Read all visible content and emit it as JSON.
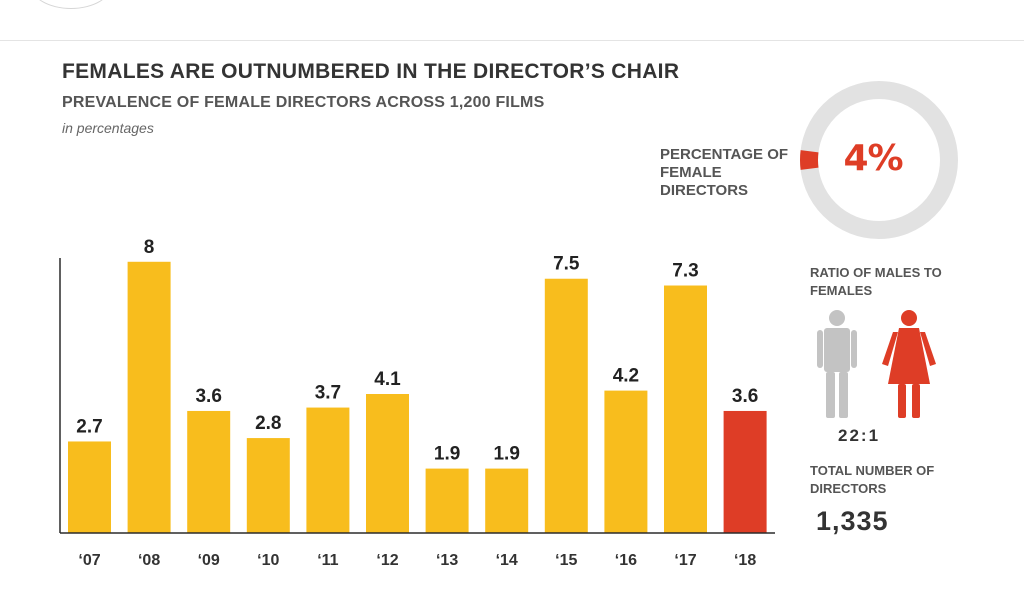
{
  "header": {
    "title": "FEMALES ARE OUTNUMBERED IN THE DIRECTOR’S CHAIR",
    "subtitle": "PREVALENCE OF FEMALE DIRECTORS ACROSS 1,200 FILMS",
    "unit_note": "in percentages"
  },
  "colors": {
    "bar": "#f8bd1d",
    "highlight": "#de3d26",
    "male_icon": "#c3c3c3",
    "donut_ring": "#e2e2e2"
  },
  "chart_data": {
    "type": "bar",
    "categories": [
      "‘07",
      "‘08",
      "‘09",
      "‘10",
      "‘11",
      "‘12",
      "‘13",
      "‘14",
      "‘15",
      "‘16",
      "‘17",
      "‘18"
    ],
    "values": [
      2.7,
      8,
      3.6,
      2.8,
      3.7,
      4.1,
      1.9,
      1.9,
      7.5,
      4.2,
      7.3,
      3.6
    ],
    "value_labels": [
      "2.7",
      "8",
      "3.6",
      "2.8",
      "3.7",
      "4.1",
      "1.9",
      "1.9",
      "7.5",
      "4.2",
      "7.3",
      "3.6"
    ],
    "highlight_index": 11,
    "ylim": [
      0,
      8.2
    ],
    "title": "PREVALENCE OF FEMALE DIRECTORS ACROSS 1,200 FILMS",
    "xlabel": "",
    "ylabel": "",
    "grid": false
  },
  "sidebar": {
    "donut_label": "PERCENTAGE OF FEMALE DIRECTORS",
    "donut_value": "4%",
    "donut_percent": 4,
    "male_icon": "male-figure-icon",
    "female_icon": "female-figure-icon",
    "ratio_label": "RATIO OF MALES TO FEMALES",
    "ratio_value": "22:1",
    "total_label": "TOTAL NUMBER OF DIRECTORS",
    "total_value": "1,335"
  }
}
